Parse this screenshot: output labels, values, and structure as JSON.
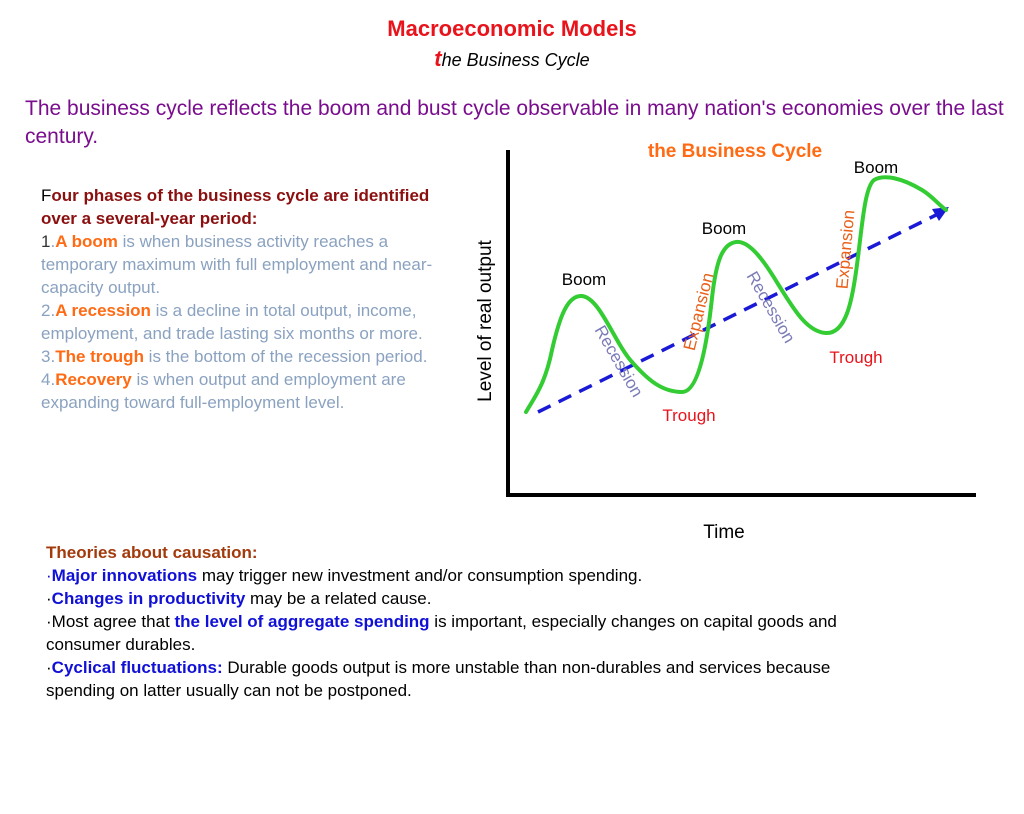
{
  "title": "Macroeconomic Models",
  "subtitle_first": "t",
  "subtitle_rest": "he Business Cycle",
  "intro": "The business cycle reflects the boom and bust cycle observable in many nation's economies over the last century.",
  "phases": {
    "heading_first": "F",
    "heading_rest": "our phases of the business cycle are identified over a several-year period:",
    "items": [
      {
        "num": "1",
        "sep": ".",
        "term": "A boom",
        "desc": " is when business activity reaches a temporary maximum with full employment and near-capacity output."
      },
      {
        "num": "2.",
        "sep": "",
        "term": "A recession",
        "desc": " is a decline in total output, income, employment, and trade lasting six months or more."
      },
      {
        "num": "3.",
        "sep": "",
        "term": "The trough",
        "desc": " is the bottom of the recession period."
      },
      {
        "num": "4.",
        "sep": "",
        "term": "Recovery",
        "desc": " is when output and employment are expanding toward full-employment level."
      }
    ]
  },
  "diagram": {
    "title": "the Business Cycle",
    "ylabel": "Level of real output",
    "xlabel": "Time",
    "labels": {
      "boom1": "Boom",
      "boom2": "Boom",
      "boom3": "Boom",
      "trough1": "Trough",
      "trough2": "Trough",
      "recession1": "Recession",
      "recession2": "Recession",
      "expansion1": "Expansion",
      "expansion2": "Expansion"
    },
    "colors": {
      "curve": "#33cc33",
      "trend": "#1a1ad6",
      "title": "#ff6a13",
      "trough": "#e8131b",
      "recession": "#7b7bb8",
      "expansion": "#e8601a"
    }
  },
  "theories": {
    "heading": "Theories about causation:",
    "bullet": "·",
    "items": [
      {
        "pre": "",
        "bold": "Major innovations",
        "post": " may trigger new investment and/or consumption spending."
      },
      {
        "pre": "",
        "bold": "Changes in productivity",
        "post": " may be a related cause."
      },
      {
        "pre": "Most agree that ",
        "bold": "the level of aggregate spending",
        "post": " is important, especially changes on capital goods and consumer durables."
      },
      {
        "pre": "",
        "bold": "Cyclical fluctuations:",
        "post": " Durable goods output is more unstable than non-durables and services because spending on latter usually can not be postponed."
      }
    ]
  }
}
